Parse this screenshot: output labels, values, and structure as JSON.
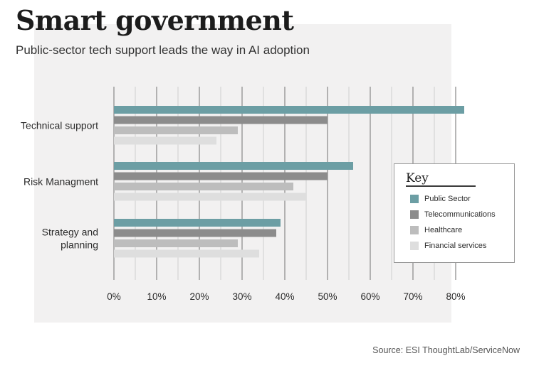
{
  "header": {
    "title": "Smart government",
    "subtitle": "Public-sector tech support leads the way in AI adoption"
  },
  "footer": {
    "source": "Source: ESI ThoughtLab/ServiceNow"
  },
  "legend": {
    "title": "Key",
    "items": [
      {
        "label": "Public Sector",
        "color": "#6c9ea4"
      },
      {
        "label": "Telecommunications",
        "color": "#8c8c8c"
      },
      {
        "label": "Healthcare",
        "color": "#bdbdbd"
      },
      {
        "label": "Financial services",
        "color": "#dedede"
      }
    ]
  },
  "chart_data": {
    "type": "bar",
    "orientation": "horizontal",
    "categories": [
      [
        "Technical support"
      ],
      [
        "Risk Managment"
      ],
      [
        "Strategy and",
        "planning"
      ]
    ],
    "series": [
      {
        "name": "Public Sector",
        "color": "#6c9ea4",
        "values": [
          82,
          56,
          39
        ]
      },
      {
        "name": "Telecommunications",
        "color": "#8c8c8c",
        "values": [
          50,
          50,
          38
        ]
      },
      {
        "name": "Healthcare",
        "color": "#bdbdbd",
        "values": [
          29,
          42,
          29
        ]
      },
      {
        "name": "Financial services",
        "color": "#dedede",
        "values": [
          24,
          45,
          34
        ]
      }
    ],
    "xlim": [
      0,
      80
    ],
    "xticks": [
      "0%",
      "10%",
      "20%",
      "30%",
      "40%",
      "50%",
      "60%",
      "70%",
      "80%"
    ],
    "grid": true,
    "legend_position": "right"
  }
}
